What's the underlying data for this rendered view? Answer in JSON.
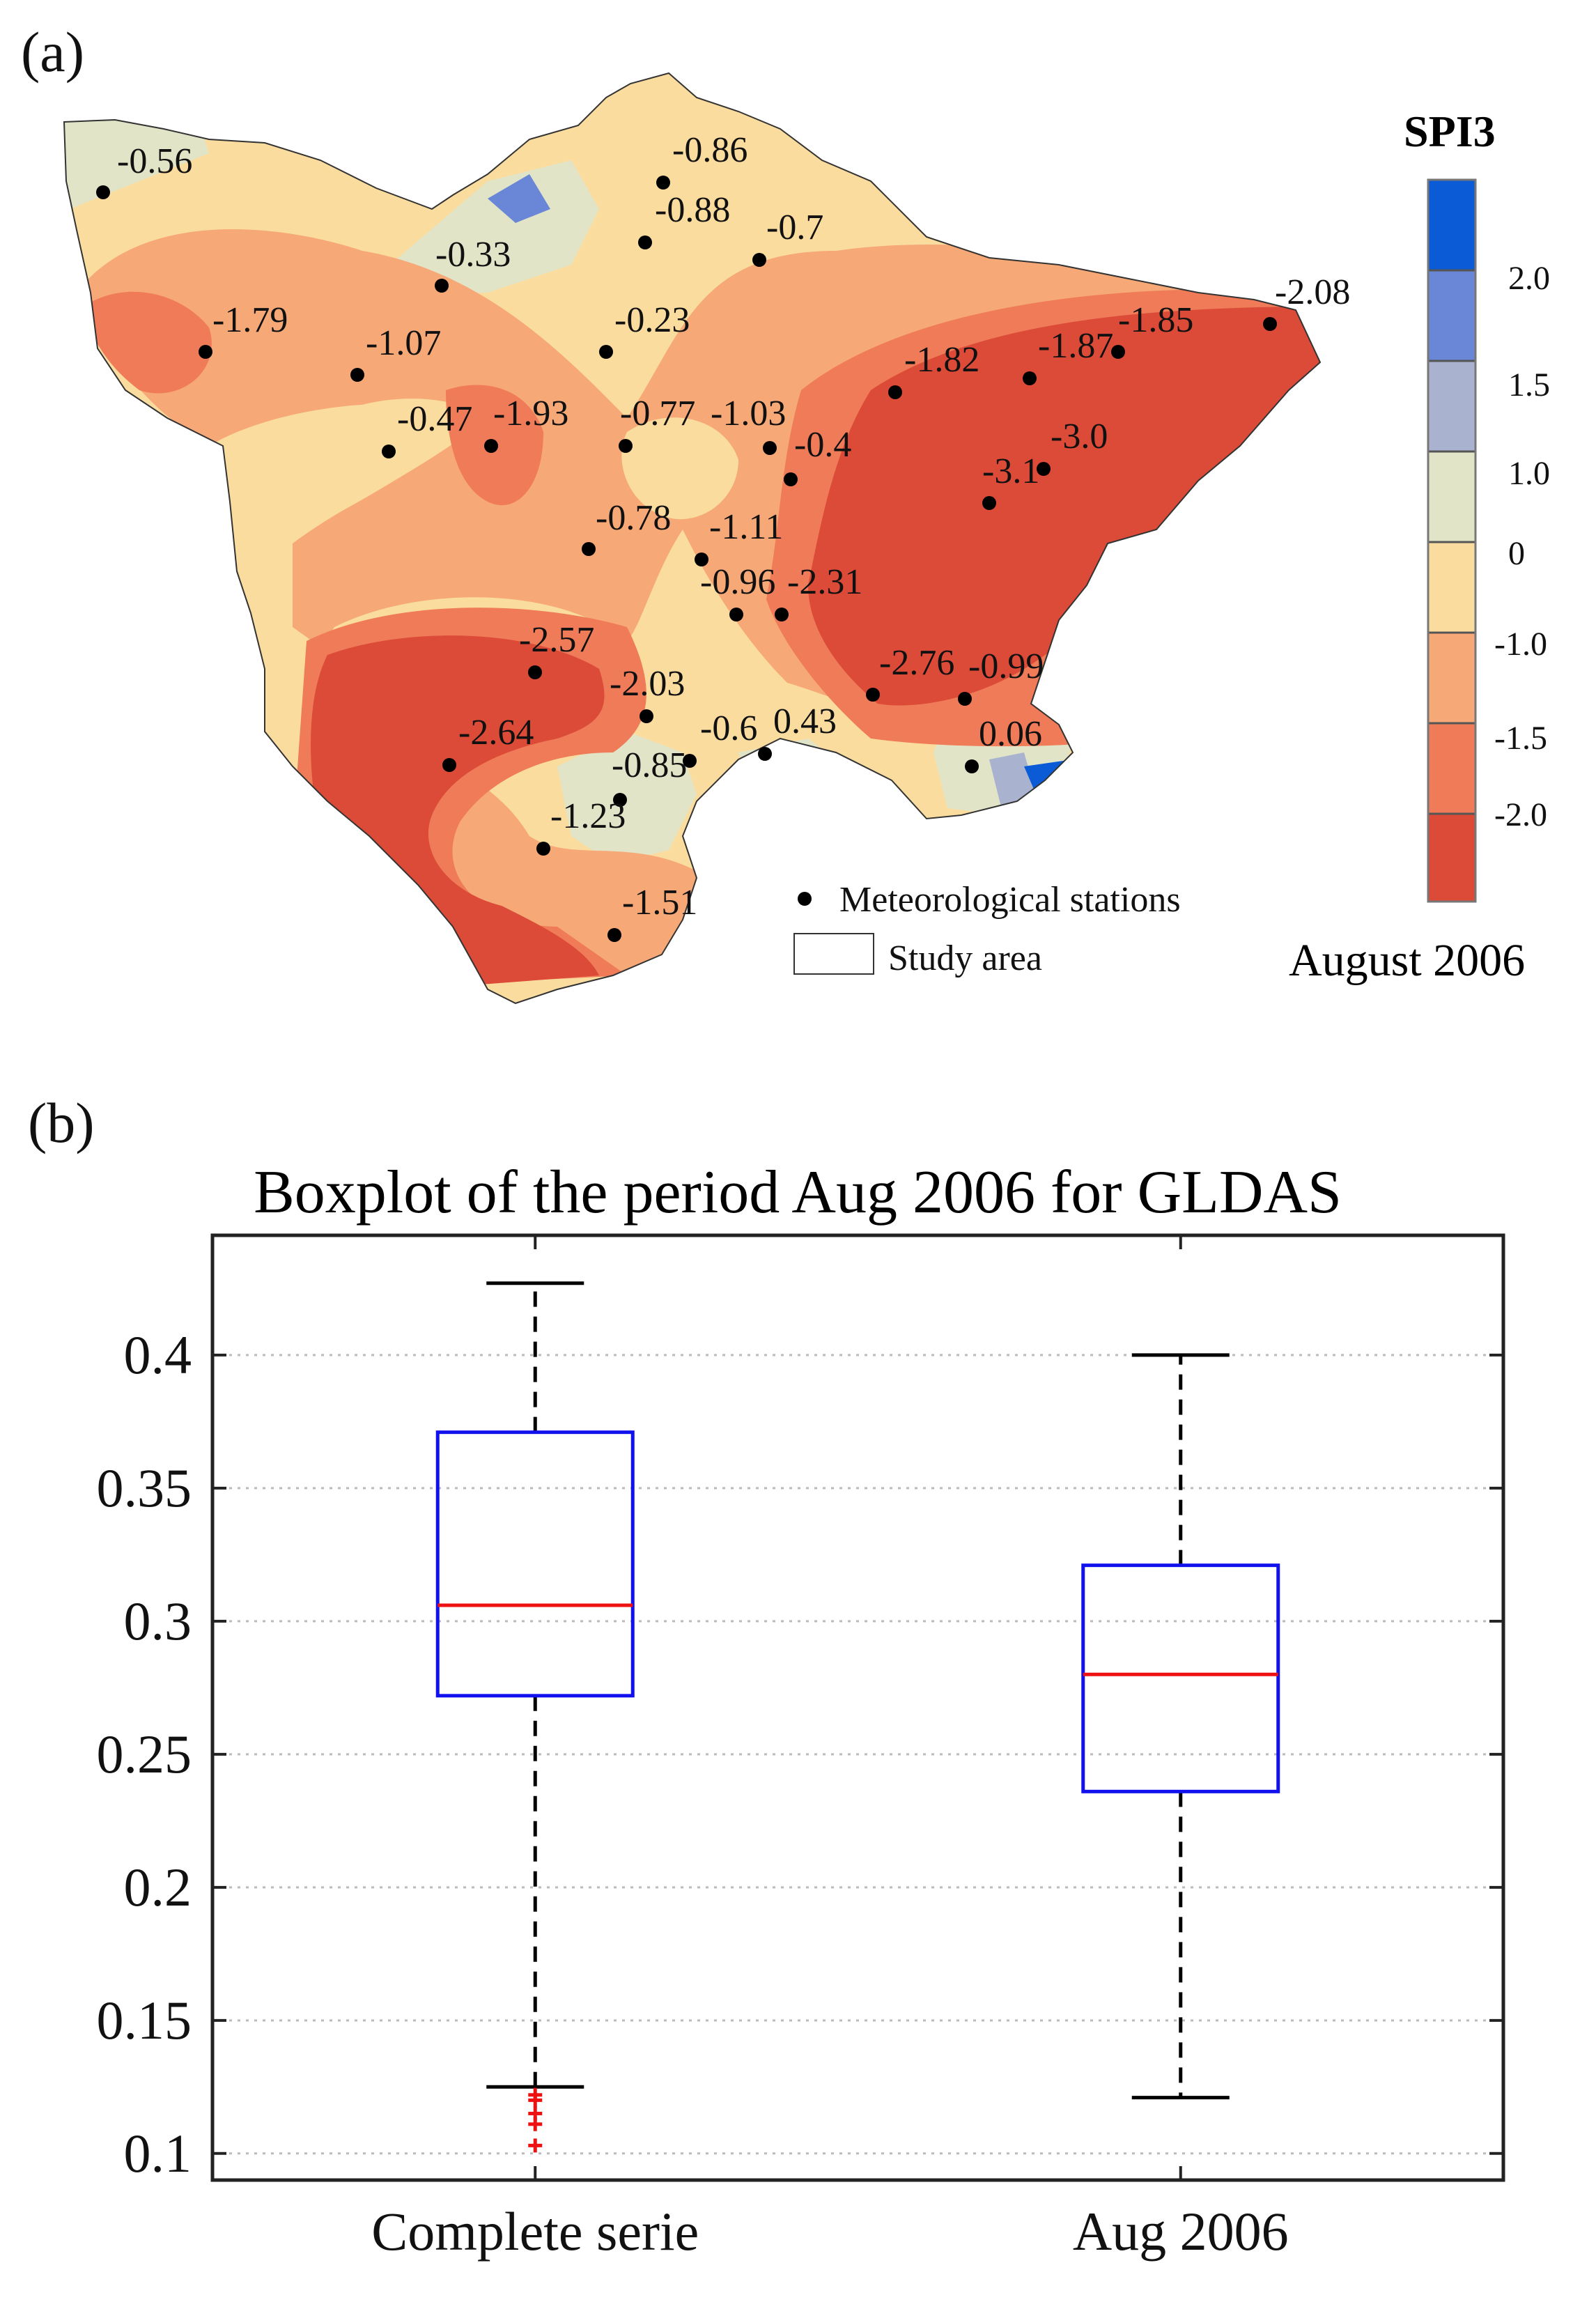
{
  "panel_a": {
    "label": "(a)",
    "colorbar_title": "SPI3",
    "period_label": "August 2006",
    "legend": {
      "stations": "Meteorological stations",
      "study_area": "Study area"
    },
    "colorbar_ticks": [
      "2.0",
      "1.5",
      "1.0",
      "0",
      "-1.0",
      "-1.5",
      "-2.0"
    ],
    "colors": {
      "c_gt2": "#0b5bd6",
      "c_15_2": "#6a86d6",
      "c_1_15": "#a9b3cf",
      "c_0_1": "#e2e4c7",
      "c_m1_0": "#fbdc9f",
      "c_m15_m1": "#f6a877",
      "c_m2_m15": "#ef7b58",
      "c_lt_m2": "#dc4a38"
    },
    "stations": [
      {
        "name": "-0.56",
        "value": -0.56
      },
      {
        "name": "-0.86",
        "value": -0.86
      },
      {
        "name": "-0.88",
        "value": -0.88
      },
      {
        "name": "-0.7",
        "value": -0.7
      },
      {
        "name": "-0.33",
        "value": -0.33
      },
      {
        "name": "-1.79",
        "value": -1.79
      },
      {
        "name": "-1.07",
        "value": -1.07
      },
      {
        "name": "-0.23",
        "value": -0.23
      },
      {
        "name": "-0.47",
        "value": -0.47
      },
      {
        "name": "-1.93",
        "value": -1.93
      },
      {
        "name": "-0.77",
        "value": -0.77
      },
      {
        "name": "-1.03",
        "value": -1.03
      },
      {
        "name": "-0.4",
        "value": -0.4
      },
      {
        "name": "-0.78",
        "value": -0.78
      },
      {
        "name": "-1.11",
        "value": -1.11
      },
      {
        "name": "-0.96",
        "value": -0.96
      },
      {
        "name": "-2.31",
        "value": -2.31
      },
      {
        "name": "-1.82",
        "value": -1.82
      },
      {
        "name": "-1.87",
        "value": -1.87
      },
      {
        "name": "-1.85",
        "value": -1.85
      },
      {
        "name": "-2.08",
        "value": -2.08
      },
      {
        "name": "-3.0",
        "value": -3.0
      },
      {
        "name": "-3.1",
        "value": -3.1
      },
      {
        "name": "-2.57",
        "value": -2.57
      },
      {
        "name": "-2.03",
        "value": -2.03
      },
      {
        "name": "-2.64",
        "value": -2.64
      },
      {
        "name": "-0.6",
        "value": -0.6
      },
      {
        "name": "0.43",
        "value": 0.43
      },
      {
        "name": "-0.85",
        "value": -0.85
      },
      {
        "name": "-1.23",
        "value": -1.23
      },
      {
        "name": "-1.51",
        "value": -1.51
      },
      {
        "name": "-2.76",
        "value": -2.76
      },
      {
        "name": "-0.99",
        "value": -0.99
      },
      {
        "name": "0.06",
        "value": 0.06
      }
    ]
  },
  "panel_b": {
    "label": "(b)"
  },
  "chart_data": {
    "type": "boxplot",
    "title": "Boxplot of the period Aug 2006 for GLDAS",
    "categories": [
      "Complete serie",
      "Aug 2006"
    ],
    "boxes": [
      {
        "name": "Complete serie",
        "whisker_low": 0.125,
        "q1": 0.272,
        "median": 0.306,
        "q3": 0.371,
        "whisker_high": 0.427,
        "outliers": [
          0.122,
          0.12,
          0.115,
          0.111,
          0.103
        ]
      },
      {
        "name": "Aug 2006",
        "whisker_low": 0.121,
        "q1": 0.236,
        "median": 0.28,
        "q3": 0.321,
        "whisker_high": 0.4,
        "outliers": []
      }
    ],
    "yticks": [
      0.1,
      0.15,
      0.2,
      0.25,
      0.3,
      0.35,
      0.4
    ],
    "ytick_labels": [
      "0.1",
      "0.15",
      "0.2",
      "0.25",
      "0.3",
      "0.35",
      "0.4"
    ],
    "ylim": [
      0.09,
      0.445
    ],
    "grid": true,
    "colors": {
      "box": "#1111ee",
      "median": "#ee1111",
      "whisker": "#000000",
      "outlier": "#ee1111",
      "grid": "#bbbbbb"
    }
  }
}
